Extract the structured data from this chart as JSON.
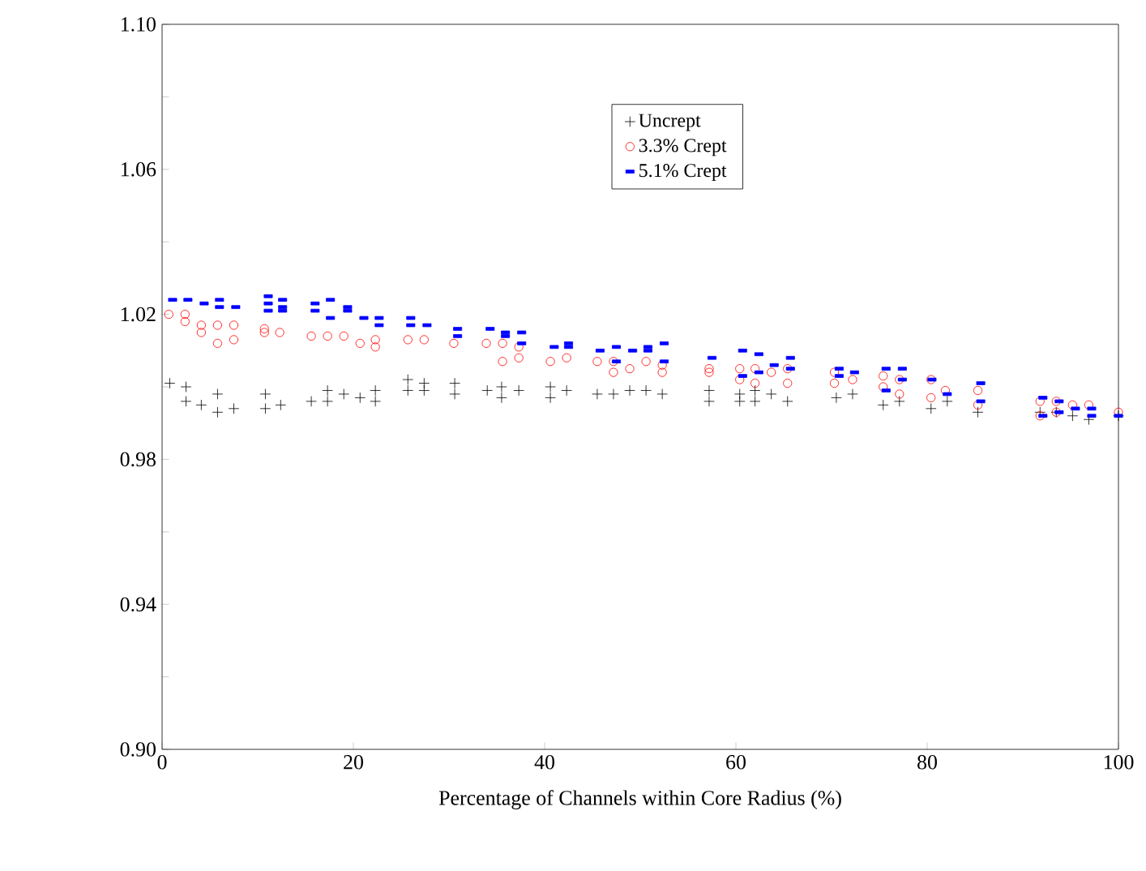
{
  "chart_data": {
    "type": "scatter",
    "xlabel": "Percentage of Channels within Core Radius (%)",
    "xlim": [
      0,
      100
    ],
    "ylim": [
      0.9,
      1.1
    ],
    "xticks": [
      0,
      20,
      40,
      60,
      80,
      100
    ],
    "yticks": [
      {
        "value": 0.9,
        "label": "0.90"
      },
      {
        "value": 0.92,
        "label": null
      },
      0.94,
      {
        "value": 0.96,
        "label": null
      },
      0.98,
      {
        "value": 1.0,
        "label": null
      },
      1.02,
      {
        "value": 1.04,
        "label": null
      },
      1.06,
      {
        "value": 1.08,
        "label": null
      },
      {
        "value": 1.1,
        "label": "1.10"
      }
    ],
    "legend": "top right",
    "grid": false,
    "series": [
      {
        "name": "Uncrept",
        "color": "#000000",
        "marker": "cross",
        "x": [
          0.8,
          2.5,
          2.5,
          4.1,
          5.8,
          5.8,
          7.5,
          10.8,
          10.8,
          12.4,
          15.6,
          17.3,
          17.3,
          19.0,
          20.7,
          22.3,
          22.3,
          25.7,
          25.7,
          27.4,
          27.4,
          30.6,
          30.6,
          34.0,
          35.5,
          35.5,
          37.3,
          40.6,
          40.6,
          42.3,
          45.5,
          47.2,
          48.9,
          50.6,
          52.3,
          57.2,
          57.2,
          60.4,
          60.4,
          62.0,
          62.0,
          63.7,
          65.4,
          70.5,
          72.2,
          75.4,
          77.1,
          80.4,
          82.1,
          85.3,
          91.8,
          93.5,
          95.2,
          96.9,
          100
        ],
        "values": [
          1.001,
          1.0,
          0.996,
          0.995,
          0.998,
          0.993,
          0.994,
          0.998,
          0.994,
          0.995,
          0.996,
          0.999,
          0.996,
          0.998,
          0.997,
          0.999,
          0.996,
          1.002,
          0.999,
          1.001,
          0.999,
          1.001,
          0.998,
          0.999,
          1.0,
          0.997,
          0.999,
          1.0,
          0.997,
          0.999,
          0.998,
          0.998,
          0.999,
          0.999,
          0.998,
          0.999,
          0.996,
          0.998,
          0.996,
          0.999,
          0.996,
          0.998,
          0.996,
          0.997,
          0.998,
          0.995,
          0.996,
          0.994,
          0.996,
          0.993,
          0.993,
          0.993,
          0.992,
          0.991,
          0.992
        ]
      },
      {
        "name": "3.3% Crept",
        "color": "#ff0000",
        "marker": "circle",
        "x": [
          0.7,
          2.4,
          2.4,
          4.1,
          4.1,
          5.8,
          5.8,
          7.5,
          7.5,
          10.7,
          10.7,
          12.3,
          15.6,
          17.3,
          19.0,
          20.7,
          22.3,
          22.3,
          25.7,
          27.4,
          30.5,
          33.9,
          35.6,
          35.6,
          37.3,
          37.3,
          40.6,
          42.3,
          45.5,
          47.2,
          47.2,
          48.9,
          50.6,
          52.3,
          52.3,
          57.2,
          57.2,
          60.4,
          60.4,
          62.0,
          62.0,
          63.7,
          65.4,
          65.4,
          70.3,
          70.3,
          72.2,
          75.4,
          75.4,
          77.1,
          77.1,
          80.4,
          80.4,
          81.9,
          85.3,
          85.3,
          91.8,
          91.8,
          93.5,
          93.5,
          95.2,
          96.9,
          100
        ],
        "values": [
          1.02,
          1.02,
          1.018,
          1.017,
          1.015,
          1.017,
          1.012,
          1.017,
          1.013,
          1.016,
          1.015,
          1.015,
          1.014,
          1.014,
          1.014,
          1.012,
          1.013,
          1.011,
          1.013,
          1.013,
          1.012,
          1.012,
          1.012,
          1.007,
          1.011,
          1.008,
          1.007,
          1.008,
          1.007,
          1.007,
          1.004,
          1.005,
          1.007,
          1.006,
          1.004,
          1.005,
          1.004,
          1.005,
          1.002,
          1.005,
          1.001,
          1.004,
          1.005,
          1.001,
          1.004,
          1.001,
          1.002,
          1.003,
          1.0,
          1.002,
          0.998,
          1.002,
          0.997,
          0.999,
          0.999,
          0.995,
          0.996,
          0.992,
          0.996,
          0.993,
          0.995,
          0.995,
          0.993
        ]
      },
      {
        "name": "5.1% Crept",
        "color": "#0000ff",
        "marker": "square",
        "x": [
          1.1,
          2.7,
          4.4,
          6.0,
          6.0,
          7.7,
          11.1,
          11.1,
          11.1,
          12.6,
          12.6,
          12.6,
          16.0,
          16.0,
          17.6,
          17.6,
          19.4,
          19.4,
          21.1,
          22.7,
          22.7,
          26.0,
          26.0,
          27.7,
          30.9,
          30.9,
          34.3,
          35.9,
          35.9,
          37.6,
          37.6,
          41.0,
          42.5,
          42.5,
          45.8,
          47.5,
          47.5,
          49.2,
          50.8,
          50.8,
          52.5,
          52.5,
          57.5,
          60.7,
          60.7,
          62.4,
          62.4,
          64.0,
          65.7,
          65.7,
          70.8,
          70.8,
          72.4,
          75.7,
          75.7,
          77.4,
          77.4,
          80.5,
          82.1,
          85.6,
          85.6,
          92.1,
          92.1,
          93.8,
          93.8,
          95.5,
          97.2,
          97.2,
          100
        ],
        "values": [
          1.024,
          1.024,
          1.023,
          1.024,
          1.022,
          1.022,
          1.025,
          1.023,
          1.021,
          1.024,
          1.022,
          1.021,
          1.023,
          1.021,
          1.024,
          1.019,
          1.022,
          1.021,
          1.019,
          1.019,
          1.017,
          1.019,
          1.017,
          1.017,
          1.016,
          1.014,
          1.016,
          1.015,
          1.014,
          1.015,
          1.012,
          1.011,
          1.012,
          1.011,
          1.01,
          1.011,
          1.007,
          1.01,
          1.011,
          1.01,
          1.012,
          1.007,
          1.008,
          1.01,
          1.003,
          1.009,
          1.004,
          1.006,
          1.008,
          1.005,
          1.005,
          1.003,
          1.004,
          1.005,
          0.999,
          1.005,
          1.002,
          1.002,
          0.998,
          1.001,
          0.996,
          0.997,
          0.992,
          0.996,
          0.993,
          0.994,
          0.994,
          0.992,
          0.992
        ]
      }
    ]
  }
}
